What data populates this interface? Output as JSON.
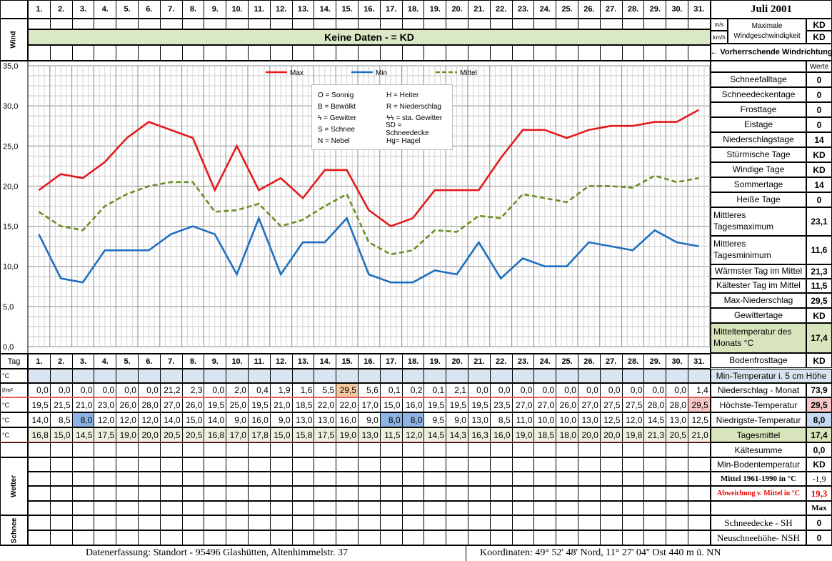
{
  "header": {
    "month": "Juli 2001",
    "days": [
      "1.",
      "2.",
      "3.",
      "4.",
      "5.",
      "6.",
      "7.",
      "8.",
      "9.",
      "10.",
      "11.",
      "12.",
      "13.",
      "14.",
      "15.",
      "16.",
      "17.",
      "18.",
      "19.",
      "20.",
      "21.",
      "22.",
      "23.",
      "24.",
      "25.",
      "26.",
      "27.",
      "28.",
      "29.",
      "30.",
      "31."
    ],
    "wind_label": "Wind",
    "no_data_banner": "Keine Daten -  = KD",
    "unit_ms": "m/s",
    "unit_kmh": "km/h",
    "max_wind_label": "Maximale Windgeschwindigkeit",
    "max_wind_ms": "KD",
    "max_wind_kmh": "KD",
    "prevailing_wind": "← Vorherrschende Windrichtung"
  },
  "legend": {
    "max": "Max",
    "min": "Min",
    "mittel": "Mittel",
    "symbols": [
      [
        "O = Sonnig",
        "H = Heiter"
      ],
      [
        "B = Bewölkt",
        "R = Niederschlag"
      ],
      [
        "ϟ = Gewitter",
        "ϟϟ = sta. Gewitter"
      ],
      [
        "S = Schnee",
        "SD = Schneedecke"
      ],
      [
        "N = Nebel",
        "Hg= Hagel"
      ]
    ]
  },
  "chart_data": {
    "type": "line",
    "x": [
      1,
      2,
      3,
      4,
      5,
      6,
      7,
      8,
      9,
      10,
      11,
      12,
      13,
      14,
      15,
      16,
      17,
      18,
      19,
      20,
      21,
      22,
      23,
      24,
      25,
      26,
      27,
      28,
      29,
      30,
      31
    ],
    "ylim": [
      0,
      35
    ],
    "yticks": [
      "0,0",
      "5,0",
      "10,0",
      "15,0",
      "20,0",
      "25,0",
      "30,0",
      "35,0"
    ],
    "grid": true,
    "legend_position": "top-center",
    "series": [
      {
        "name": "Max",
        "color": "#e31a1c",
        "style": "solid",
        "values": [
          19.5,
          21.5,
          21.0,
          23.0,
          26.0,
          28.0,
          27.0,
          26.0,
          19.5,
          25.0,
          19.5,
          21.0,
          18.5,
          22.0,
          22.0,
          17.0,
          15.0,
          16.0,
          19.5,
          19.5,
          19.5,
          23.5,
          27.0,
          27.0,
          26.0,
          27.0,
          27.5,
          27.5,
          28.0,
          28.0,
          29.5
        ]
      },
      {
        "name": "Min",
        "color": "#1f6fbf",
        "style": "solid",
        "values": [
          14.0,
          8.5,
          8.0,
          12.0,
          12.0,
          12.0,
          14.0,
          15.0,
          14.0,
          9.0,
          16.0,
          9.0,
          13.0,
          13.0,
          16.0,
          9.0,
          8.0,
          8.0,
          9.5,
          9.0,
          13.0,
          8.5,
          11.0,
          10.0,
          10.0,
          13.0,
          12.5,
          12.0,
          14.5,
          13.0,
          12.5
        ]
      },
      {
        "name": "Mittel",
        "color": "#6b8e23",
        "style": "dashed",
        "values": [
          16.8,
          15.0,
          14.5,
          17.5,
          19.0,
          20.0,
          20.5,
          20.5,
          16.8,
          17.0,
          17.8,
          15.0,
          15.8,
          17.5,
          19.0,
          13.0,
          11.5,
          12.0,
          14.5,
          14.3,
          16.3,
          16.0,
          19.0,
          18.5,
          18.0,
          20.0,
          20.0,
          19.8,
          21.3,
          20.5,
          21.0
        ]
      }
    ]
  },
  "table": {
    "tag_label": "Tag",
    "unit_c": "°C",
    "unit_lm2": "l/m²",
    "precip": [
      "0,0",
      "0,0",
      "0,0",
      "0,0",
      "0,0",
      "0,0",
      "21,2",
      "2,3",
      "0,0",
      "2,0",
      "0,4",
      "1,9",
      "1,6",
      "5,5",
      "29,5",
      "5,6",
      "0,1",
      "0,2",
      "0,1",
      "2,1",
      "0,0",
      "0,0",
      "0,0",
      "0,0",
      "0,0",
      "0,0",
      "0,0",
      "0,0",
      "0,0",
      "0,0",
      "1,4"
    ],
    "max": [
      "19,5",
      "21,5",
      "21,0",
      "23,0",
      "26,0",
      "28,0",
      "27,0",
      "26,0",
      "19,5",
      "25,0",
      "19,5",
      "21,0",
      "18,5",
      "22,0",
      "22,0",
      "17,0",
      "15,0",
      "16,0",
      "19,5",
      "19,5",
      "19,5",
      "23,5",
      "27,0",
      "27,0",
      "26,0",
      "27,0",
      "27,5",
      "27,5",
      "28,0",
      "28,0",
      "29,5"
    ],
    "min": [
      "14,0",
      "8,5",
      "8,0",
      "12,0",
      "12,0",
      "12,0",
      "14,0",
      "15,0",
      "14,0",
      "9,0",
      "16,0",
      "9,0",
      "13,0",
      "13,0",
      "16,0",
      "9,0",
      "8,0",
      "8,0",
      "9,5",
      "9,0",
      "13,0",
      "8,5",
      "11,0",
      "10,0",
      "10,0",
      "13,0",
      "12,5",
      "12,0",
      "14,5",
      "13,0",
      "12,5"
    ],
    "mittel": [
      "16,8",
      "15,0",
      "14,5",
      "17,5",
      "19,0",
      "20,0",
      "20,5",
      "20,5",
      "16,8",
      "17,0",
      "17,8",
      "15,0",
      "15,8",
      "17,5",
      "19,0",
      "13,0",
      "11,5",
      "12,0",
      "14,5",
      "14,3",
      "16,3",
      "16,0",
      "19,0",
      "18,5",
      "18,0",
      "20,0",
      "20,0",
      "19,8",
      "21,3",
      "20,5",
      "21,0"
    ],
    "wetter_label": "Wetter",
    "schnee_label": "Schnee"
  },
  "stats": {
    "werte_header": "Werte",
    "rows": [
      {
        "label": "Schneefalltage",
        "value": "0"
      },
      {
        "label": "Schneedeckentage",
        "value": "0"
      },
      {
        "label": "Frosttage",
        "value": "0"
      },
      {
        "label": "Eistage",
        "value": "0"
      },
      {
        "label": "Niederschlagstage",
        "value": "14"
      },
      {
        "label": "Stürmische Tage",
        "value": "KD"
      },
      {
        "label": "Windige Tage",
        "value": "KD"
      },
      {
        "label": "Sommertage",
        "value": "14"
      },
      {
        "label": "Heiße Tage",
        "value": "0"
      },
      {
        "label": "Mittleres Tagesmaximum",
        "value": "23,1"
      },
      {
        "label": "Mittleres Tagesminimum",
        "value": "11,6"
      },
      {
        "label": "Wärmster Tag im Mittel",
        "value": "21,3"
      },
      {
        "label": "Kältester Tag im Mittel",
        "value": "11,5"
      },
      {
        "label": "Max-Niederschlag",
        "value": "29,5"
      },
      {
        "label": "Gewittertage",
        "value": "KD"
      },
      {
        "label": "Mitteltemperatur des Monats °C",
        "value": "17,4"
      },
      {
        "label": "Bodenfrosttage",
        "value": "KD"
      }
    ],
    "min_temp_5cm": "Min-Temperatur i. 5 cm Höhe",
    "precip_month_label": "Niederschlag - Monat",
    "precip_month_value": "73,9",
    "highest_label": "Höchste-Temperatur",
    "highest_value": "29,5",
    "lowest_label": "Niedrigste-Temperatur",
    "lowest_value": "8,0",
    "daily_mean_label": "Tagesmittel",
    "daily_mean_value": "17,4",
    "kaeltesumme_label": "Kältesumme",
    "kaeltesumme_value": "0,0",
    "min_boden_label": "Min-Bodentemperatur",
    "min_boden_value": "KD",
    "mittel_1961_label": "Mittel 1961-1990 in °C",
    "mittel_1961_value": "-1,9",
    "abweichung_label": "Abweichung v. Mittel in °C",
    "abweichung_value": "19,3",
    "max_header": "Max",
    "schneedecke_label": "Schneedecke -   SH",
    "schneedecke_value": "0",
    "neuschnee_label": "Neuschneehöhe- NSH",
    "neuschnee_value": "0"
  },
  "footer": {
    "left": "Datenerfassung:  Standort -   95496  Glashütten, Altenhimmelstr. 37",
    "right": "Koordinaten:  49° 52' 48' Nord,  11° 27' 04'' Ost   440 m ü. NN"
  }
}
